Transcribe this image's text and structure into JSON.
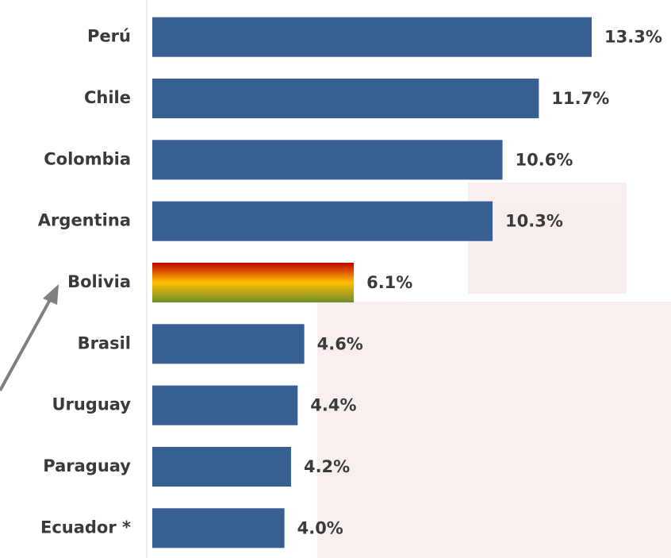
{
  "chart_data": {
    "type": "bar",
    "orientation": "horizontal",
    "categories": [
      "Perú",
      "Chile",
      "Colombia",
      "Argentina",
      "Bolivia",
      "Brasil",
      "Uruguay",
      "Paraguay",
      "Ecuador *"
    ],
    "values": [
      13.3,
      11.7,
      10.6,
      10.3,
      6.1,
      4.6,
      4.4,
      4.2,
      4.0
    ],
    "value_labels": [
      "13.3%",
      "11.7%",
      "10.6%",
      "10.3%",
      "6.1%",
      "4.6%",
      "4.4%",
      "4.2%",
      "4.0%"
    ],
    "color": "#375f92",
    "highlight_index": 4,
    "highlight_gradient": [
      "#c00000",
      "#ffc000",
      "#6e8c2c"
    ],
    "xlim": [
      0,
      15.7
    ]
  }
}
